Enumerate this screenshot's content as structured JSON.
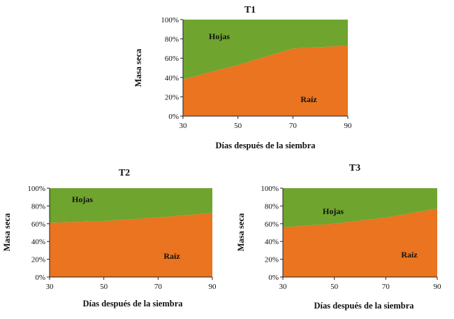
{
  "colors": {
    "raiz": "#ea741f",
    "hojas": "#6fa42f"
  },
  "chart_data": [
    {
      "type": "area",
      "title": "T1",
      "xlabel": "Días después de la siembra",
      "ylabel": "Masa seca",
      "x": [
        30,
        50,
        70,
        90
      ],
      "xticks": [
        "30",
        "50",
        "70",
        "90"
      ],
      "xlim": [
        30,
        90
      ],
      "yticks": [
        "0%",
        "20%",
        "40%",
        "60%",
        "80%",
        "100%"
      ],
      "ylim": [
        0,
        100
      ],
      "stacked": true,
      "grid": false,
      "series": [
        {
          "name": "Raíz",
          "values": [
            38,
            53,
            70,
            73
          ]
        },
        {
          "name": "Hojas",
          "values": [
            62,
            47,
            30,
            27
          ]
        }
      ]
    },
    {
      "type": "area",
      "title": "T2",
      "xlabel": "Días después de la siembra",
      "ylabel": "Masa seca",
      "x": [
        30,
        50,
        70,
        90
      ],
      "xticks": [
        "30",
        "50",
        "70",
        "90"
      ],
      "xlim": [
        30,
        90
      ],
      "yticks": [
        "0%",
        "20%",
        "40%",
        "60%",
        "80%",
        "100%"
      ],
      "ylim": [
        0,
        100
      ],
      "stacked": true,
      "grid": false,
      "series": [
        {
          "name": "Raíz",
          "values": [
            61,
            63,
            67,
            72
          ]
        },
        {
          "name": "Hojas",
          "values": [
            39,
            37,
            33,
            28
          ]
        }
      ]
    },
    {
      "type": "area",
      "title": "T3",
      "xlabel": "Días después de la siembra",
      "ylabel": "Masa seca",
      "x": [
        30,
        50,
        70,
        90
      ],
      "xticks": [
        "30",
        "50",
        "70",
        "90"
      ],
      "xlim": [
        30,
        90
      ],
      "yticks": [
        "0%",
        "20%",
        "40%",
        "60%",
        "80%",
        "100%"
      ],
      "ylim": [
        0,
        100
      ],
      "stacked": true,
      "grid": false,
      "series": [
        {
          "name": "Raíz",
          "values": [
            56,
            60,
            67,
            77
          ]
        },
        {
          "name": "Hojas",
          "values": [
            44,
            40,
            33,
            23
          ]
        }
      ]
    }
  ]
}
